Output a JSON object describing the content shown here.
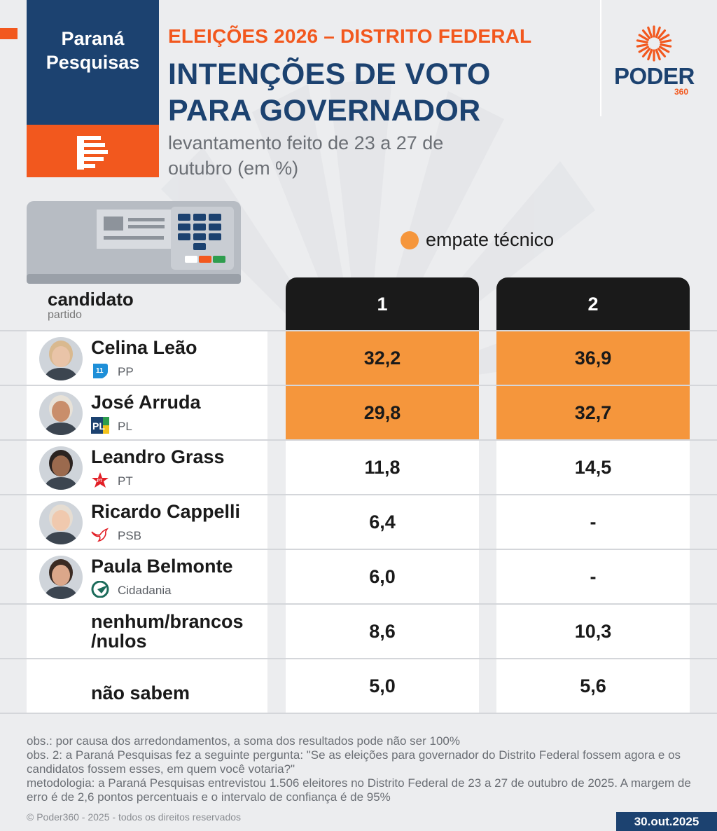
{
  "header": {
    "source_logo_line1": "Paraná",
    "source_logo_line2": "Pesquisas",
    "kicker": "ELEIÇÕES 2026 – DISTRITO FEDERAL",
    "title_line1": "INTENÇÕES DE VOTO",
    "title_line2": "PARA GOVERNADOR",
    "subtitle": "levantamento feito de 23 a 27 de outubro (em %)",
    "publisher_logo": "PODER",
    "publisher_logo_suffix": "360"
  },
  "legend": {
    "label": "empate técnico",
    "color": "#f5963c"
  },
  "table_header": {
    "candidate": "candidato",
    "party": "partido",
    "columns": [
      "1",
      "2"
    ]
  },
  "chart_data": {
    "type": "table",
    "title": "INTENÇÕES DE VOTO PARA GOVERNADOR",
    "columns": [
      "1",
      "2"
    ],
    "rows": [
      {
        "name": "Celina Leão",
        "party": "PP",
        "values": [
          "32,2",
          "36,9"
        ],
        "highlight": [
          true,
          true
        ],
        "icon": "pp-party-icon"
      },
      {
        "name": "José Arruda",
        "party": "PL",
        "values": [
          "29,8",
          "32,7"
        ],
        "highlight": [
          true,
          true
        ],
        "icon": "pl-party-icon"
      },
      {
        "name": "Leandro Grass",
        "party": "PT",
        "values": [
          "11,8",
          "14,5"
        ],
        "highlight": [
          false,
          false
        ],
        "icon": "pt-star-icon"
      },
      {
        "name": "Ricardo Cappelli",
        "party": "PSB",
        "values": [
          "6,4",
          "-"
        ],
        "highlight": [
          false,
          false
        ],
        "icon": "psb-bird-icon"
      },
      {
        "name": "Paula Belmonte",
        "party": "Cidadania",
        "values": [
          "6,0",
          "-"
        ],
        "highlight": [
          false,
          false
        ],
        "icon": "cidadania-icon"
      },
      {
        "name": "nenhum/brancos /nulos",
        "party": "",
        "values": [
          "8,6",
          "10,3"
        ],
        "highlight": [
          false,
          false
        ],
        "icon": ""
      },
      {
        "name": "não sabem",
        "party": "",
        "values": [
          "5,0",
          "5,6"
        ],
        "highlight": [
          false,
          false
        ],
        "icon": ""
      }
    ]
  },
  "notes": {
    "obs1": "obs.: por causa dos arredondamentos, a soma dos resultados pode não ser 100%",
    "obs2": "obs. 2: a Paraná Pesquisas fez a seguinte pergunta: \"Se as eleições para governador do Distrito Federal fossem agora e os candidatos fossem esses, em quem você votaria?\"",
    "method": "metodologia: a Paraná Pesquisas entrevistou 1.506 eleitores no Distrito Federal de 23 a 27 de outubro de 2025. A margem de erro é de 2,6 pontos percentuais e o intervalo de confiança é de 95%"
  },
  "footer": {
    "copyright": "© Poder360 - 2025 - todos os direitos reservados",
    "date": "30.out.2025"
  },
  "colors": {
    "navy": "#1c4270",
    "orange_brand": "#f2581e",
    "highlight": "#f5963c",
    "header_dark": "#1a1a1a"
  }
}
